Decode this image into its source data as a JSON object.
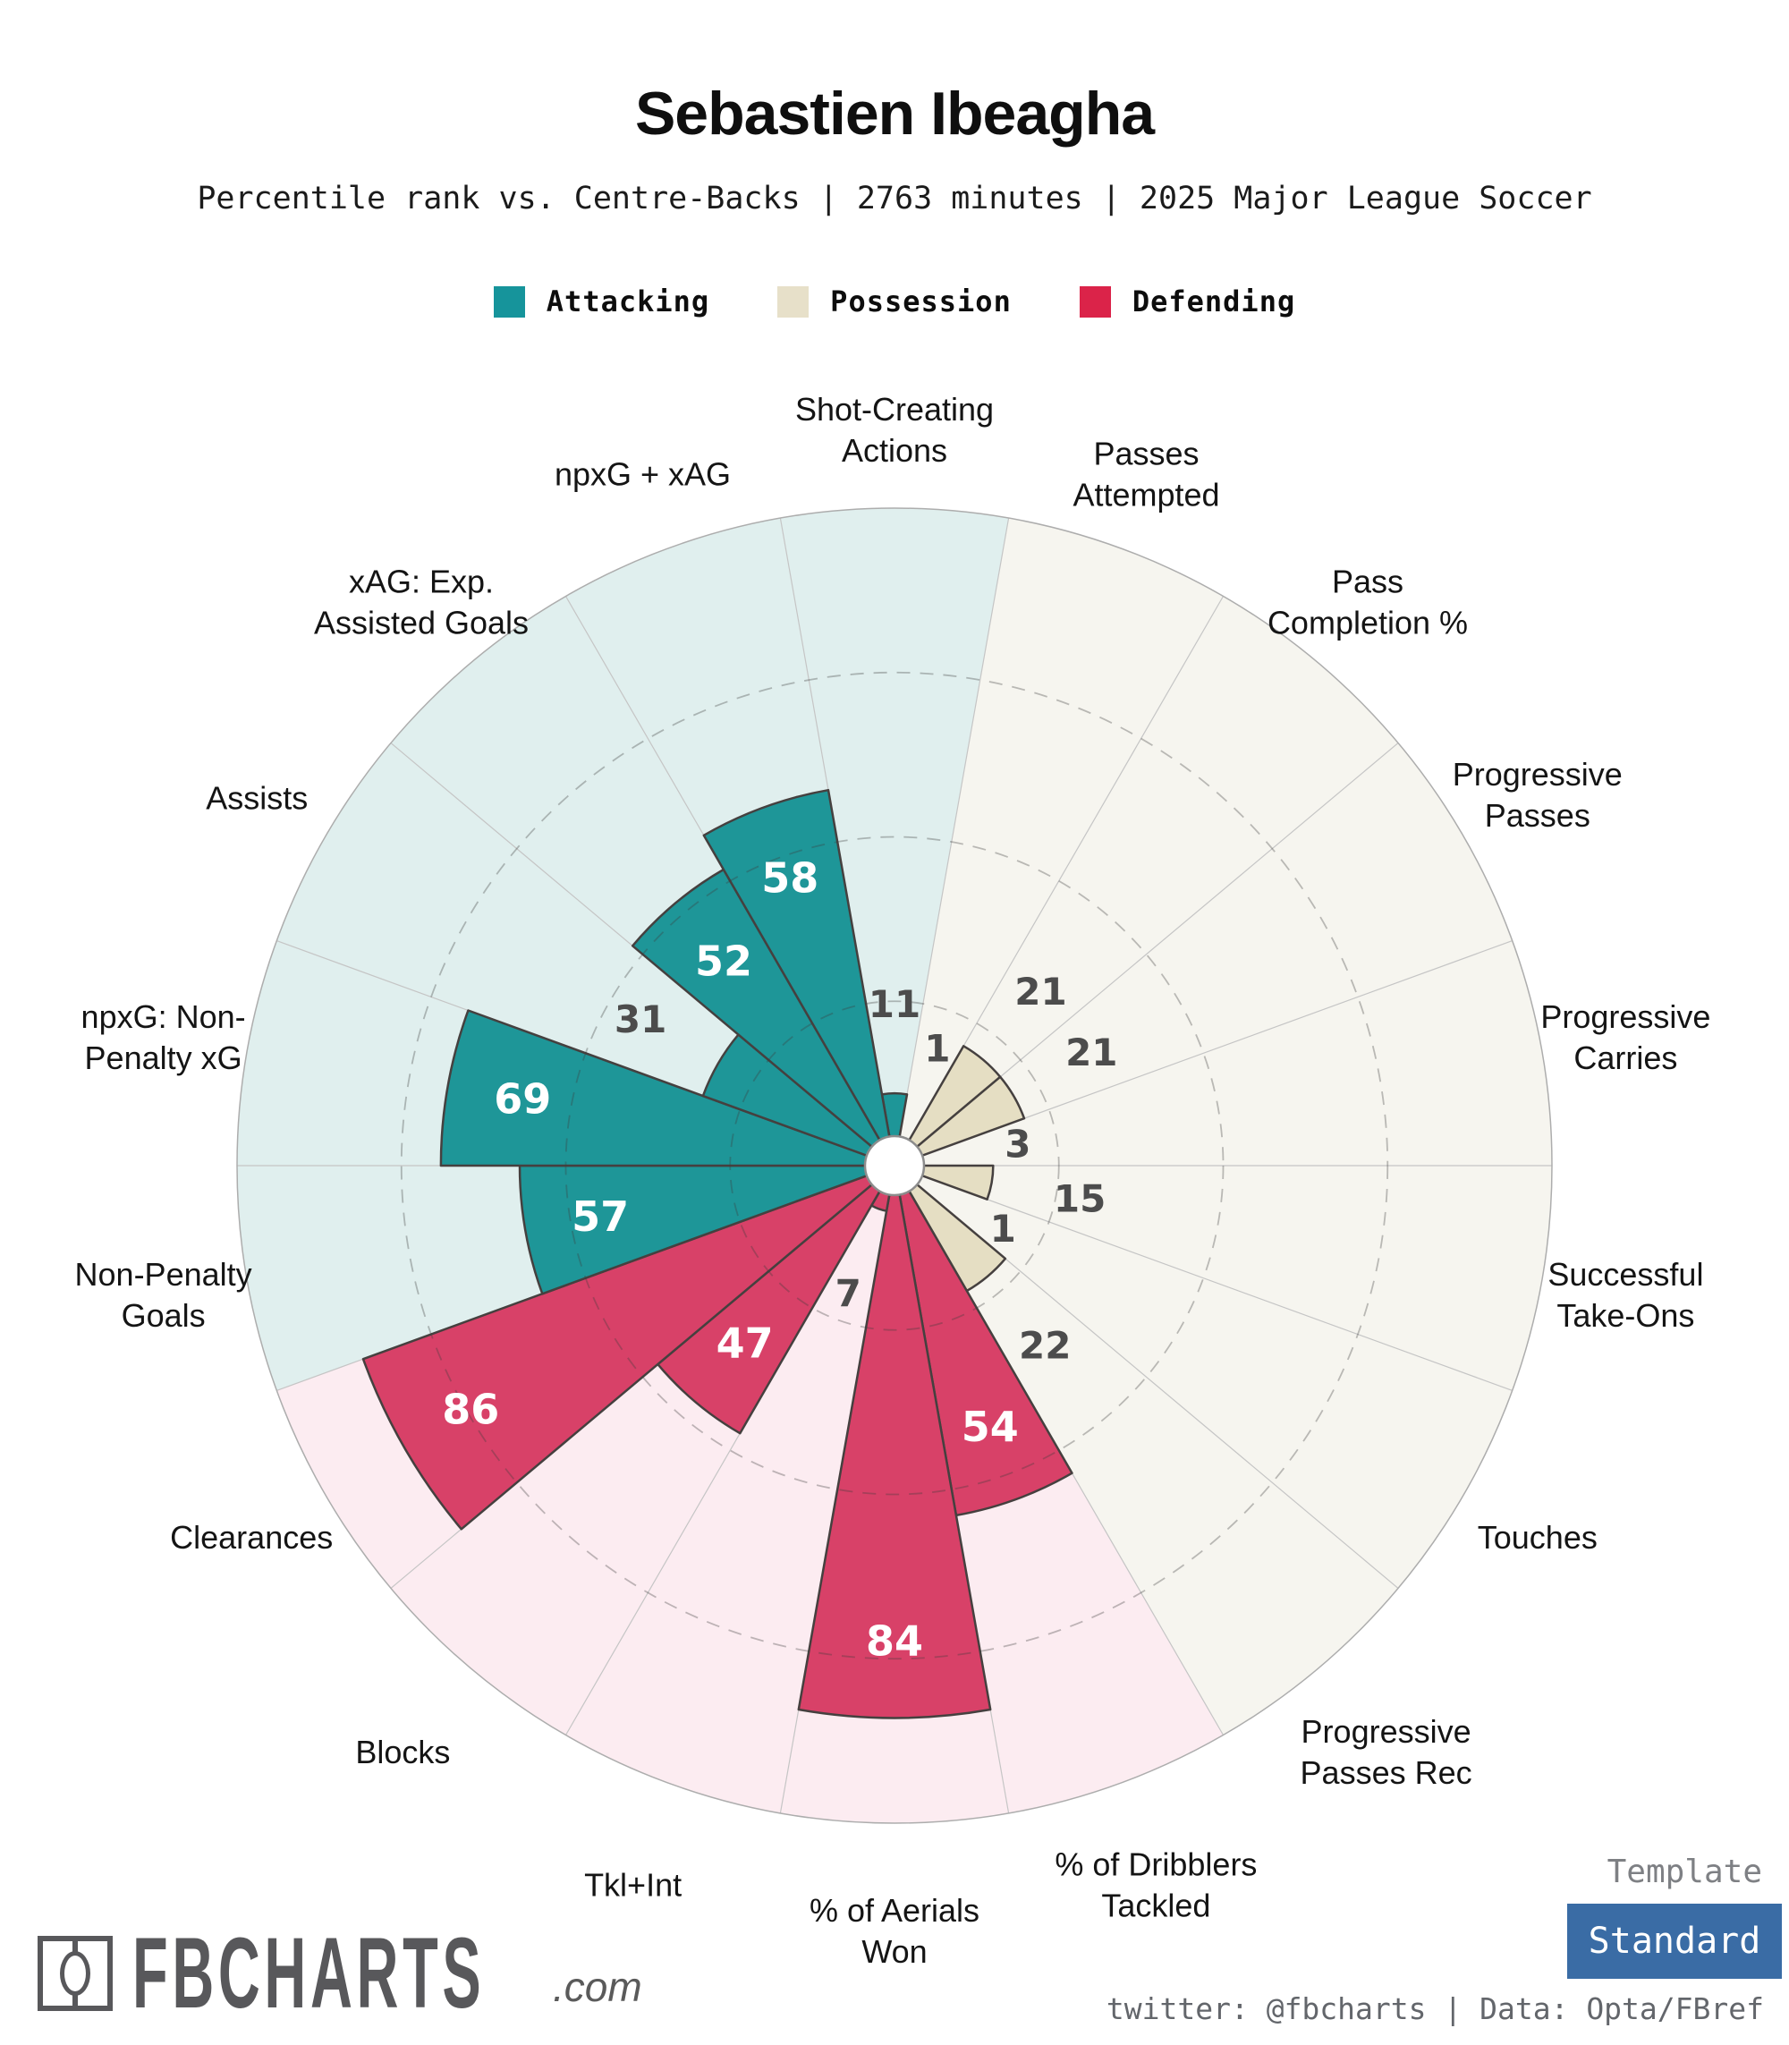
{
  "chart_data": {
    "type": "pizza (polar percentile bar chart)",
    "title": "Sebastien Ibeagha",
    "subtitle": "Percentile rank vs. Centre-Backs | 2763 minutes | 2025 Major League Soccer",
    "scale": {
      "min": 0,
      "max": 100,
      "gridlines": [
        25,
        50,
        75
      ],
      "grid": "dashed circles"
    },
    "layout": {
      "start_angle_deg": 90,
      "direction": "clockwise",
      "slice_span_deg": 20
    },
    "groups": {
      "attacking": {
        "label": "Attacking",
        "wedge_color": "#1e9698",
        "background_color": "#e0efee",
        "legend_color": "#16949b"
      },
      "possession": {
        "label": "Possession",
        "wedge_color": "#e5dec3",
        "background_color": "#f6f5ef",
        "legend_color": "#e7e0c9"
      },
      "defending": {
        "label": "Defending",
        "wedge_color": "#d84168",
        "background_color": "#fcecf1",
        "legend_color": "#db2349"
      }
    },
    "slices": [
      {
        "key": "shot-creating-actions",
        "label": "Shot-Creating Actions",
        "label_lines": [
          "Shot-Creating",
          "Actions"
        ],
        "value": 11,
        "group": "attacking"
      },
      {
        "key": "passes-attempted",
        "label": "Passes Attempted",
        "label_lines": [
          "Passes",
          "Attempted"
        ],
        "value": 1,
        "group": "possession"
      },
      {
        "key": "pass-completion-pct",
        "label": "Pass Completion %",
        "label_lines": [
          "Pass",
          "Completion %"
        ],
        "value": 21,
        "group": "possession"
      },
      {
        "key": "progressive-passes",
        "label": "Progressive Passes",
        "label_lines": [
          "Progressive",
          "Passes"
        ],
        "value": 21,
        "group": "possession"
      },
      {
        "key": "progressive-carries",
        "label": "Progressive Carries",
        "label_lines": [
          "Progressive",
          "Carries"
        ],
        "value": 3,
        "group": "possession"
      },
      {
        "key": "successful-take-ons",
        "label": "Successful Take-Ons",
        "label_lines": [
          "Successful",
          "Take-Ons"
        ],
        "value": 15,
        "group": "possession"
      },
      {
        "key": "touches",
        "label": "Touches",
        "label_lines": [
          "Touches"
        ],
        "value": 1,
        "group": "possession"
      },
      {
        "key": "progressive-passes-rec",
        "label": "Progressive Passes Rec",
        "label_lines": [
          "Progressive",
          "Passes Rec"
        ],
        "value": 22,
        "group": "possession"
      },
      {
        "key": "pct-dribblers-tackled",
        "label": "% of Dribblers Tackled",
        "label_lines": [
          "% of Dribblers",
          "Tackled"
        ],
        "value": 54,
        "group": "defending"
      },
      {
        "key": "pct-aerials-won",
        "label": "% of Aerials Won",
        "label_lines": [
          "% of Aerials",
          "Won"
        ],
        "value": 84,
        "group": "defending"
      },
      {
        "key": "tkl-int",
        "label": "Tkl+Int",
        "label_lines": [
          "Tkl+Int"
        ],
        "value": 7,
        "group": "defending"
      },
      {
        "key": "blocks",
        "label": "Blocks",
        "label_lines": [
          "Blocks"
        ],
        "value": 47,
        "group": "defending"
      },
      {
        "key": "clearances",
        "label": "Clearances",
        "label_lines": [
          "Clearances"
        ],
        "value": 86,
        "group": "defending"
      },
      {
        "key": "non-penalty-goals",
        "label": "Non-Penalty Goals",
        "label_lines": [
          "Non-Penalty",
          "Goals"
        ],
        "value": 57,
        "group": "attacking"
      },
      {
        "key": "npxg",
        "label": "npxG: Non-Penalty xG",
        "label_lines": [
          "npxG: Non-",
          "Penalty xG"
        ],
        "value": 69,
        "group": "attacking"
      },
      {
        "key": "assists",
        "label": "Assists",
        "label_lines": [
          "Assists"
        ],
        "value": 31,
        "group": "attacking"
      },
      {
        "key": "xag",
        "label": "xAG: Exp. Assisted Goals",
        "label_lines": [
          "xAG: Exp.",
          "Assisted Goals"
        ],
        "value": 52,
        "group": "attacking"
      },
      {
        "key": "npxg-plus-xag",
        "label": "npxG + xAG",
        "label_lines": [
          "npxG + xAG"
        ],
        "value": 58,
        "group": "attacking"
      }
    ]
  },
  "footer": {
    "brand": {
      "name": "FBCHARTS",
      "suffix": ".com"
    },
    "template": {
      "label": "Template",
      "value": "Standard",
      "button_color": "#3a6ca5"
    },
    "credit": "twitter: @fbcharts | Data: Opta/FBref"
  }
}
